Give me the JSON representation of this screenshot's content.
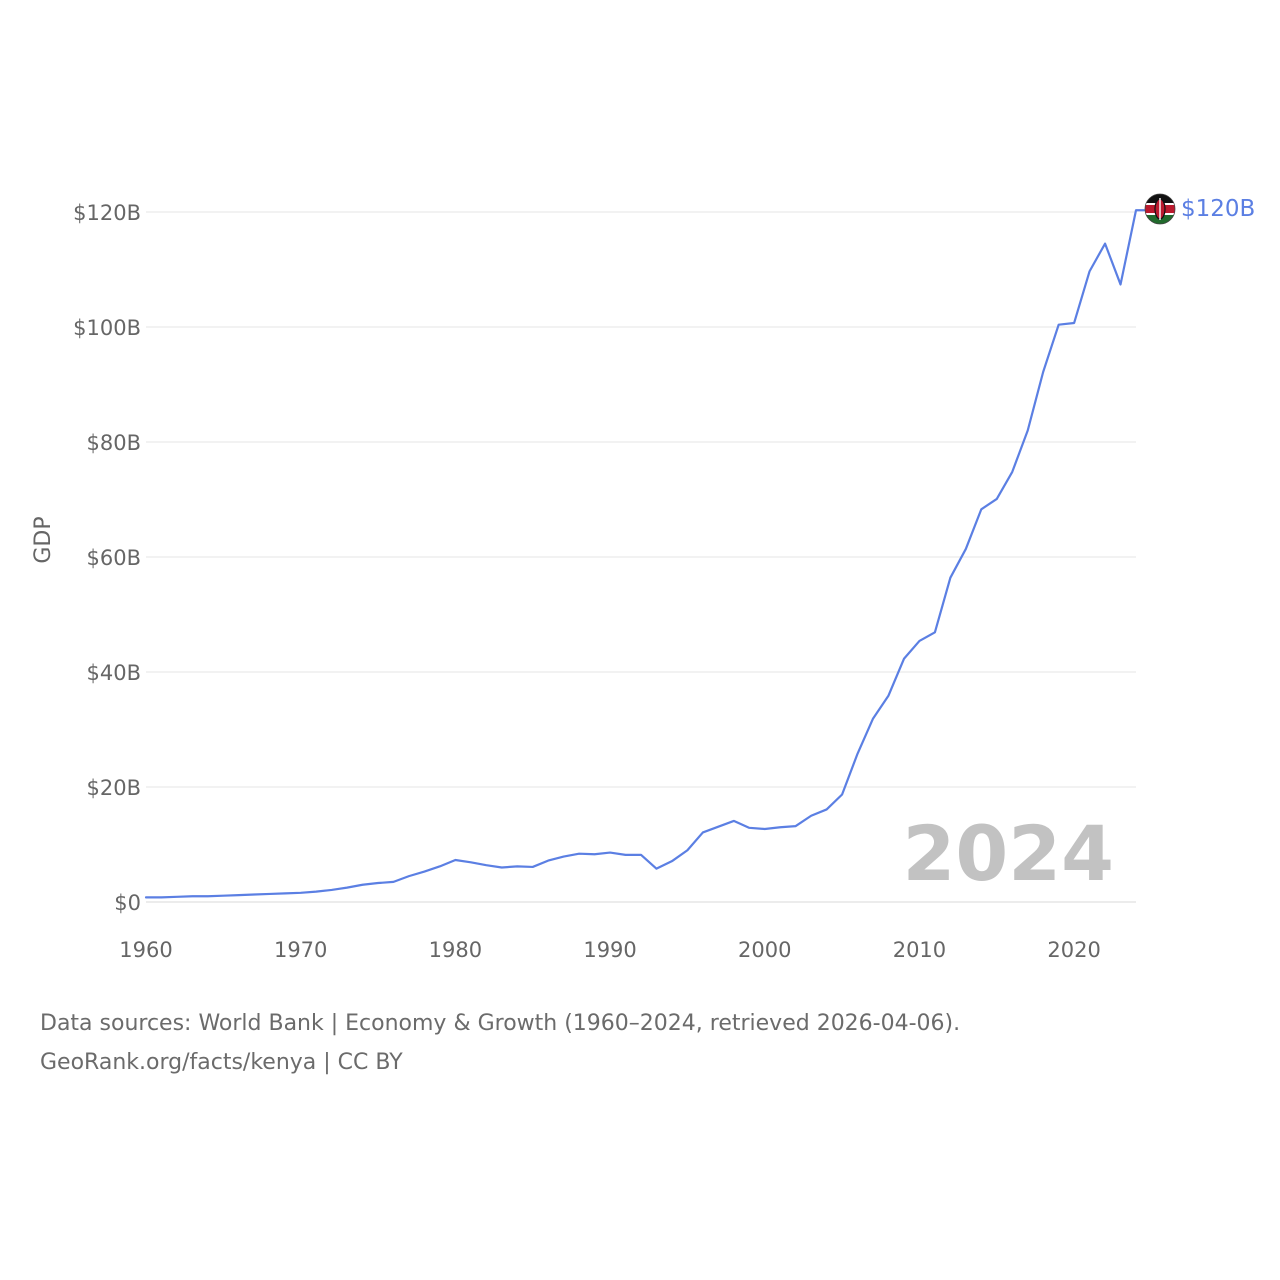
{
  "chart_data": {
    "type": "line",
    "title": "",
    "xlabel": "",
    "ylabel": "GDP",
    "xlim": [
      1960,
      2024
    ],
    "ylim": [
      0,
      120
    ],
    "y_unit": "billion USD",
    "x_ticks": [
      1960,
      1970,
      1980,
      1990,
      2000,
      2010,
      2020
    ],
    "x_tick_labels": [
      "1960",
      "1970",
      "1980",
      "1990",
      "2000",
      "2010",
      "2020"
    ],
    "y_ticks": [
      0,
      20,
      40,
      60,
      80,
      100,
      120
    ],
    "y_tick_labels": [
      "$0",
      "$20B",
      "$40B",
      "$60B",
      "$80B",
      "$100B",
      "$120B"
    ],
    "grid": true,
    "current_year_label": "2024",
    "end_value_label": "$120B",
    "series": [
      {
        "name": "Kenya",
        "color": "#5b7fe3",
        "x": [
          1960,
          1961,
          1962,
          1963,
          1964,
          1965,
          1966,
          1967,
          1968,
          1969,
          1970,
          1971,
          1972,
          1973,
          1974,
          1975,
          1976,
          1977,
          1978,
          1979,
          1980,
          1981,
          1982,
          1983,
          1984,
          1985,
          1986,
          1987,
          1988,
          1989,
          1990,
          1991,
          1992,
          1993,
          1994,
          1995,
          1996,
          1997,
          1998,
          1999,
          2000,
          2001,
          2002,
          2003,
          2004,
          2005,
          2006,
          2007,
          2008,
          2009,
          2010,
          2011,
          2012,
          2013,
          2014,
          2015,
          2016,
          2017,
          2018,
          2019,
          2020,
          2021,
          2022,
          2023,
          2024
        ],
        "values": [
          0.8,
          0.8,
          0.9,
          1.0,
          1.0,
          1.1,
          1.2,
          1.3,
          1.4,
          1.5,
          1.6,
          1.8,
          2.1,
          2.5,
          3.0,
          3.3,
          3.5,
          4.5,
          5.3,
          6.2,
          7.3,
          6.9,
          6.4,
          6.0,
          6.2,
          6.1,
          7.2,
          7.9,
          8.4,
          8.3,
          8.6,
          8.2,
          8.2,
          5.8,
          7.1,
          9.0,
          12.1,
          13.1,
          14.1,
          12.9,
          12.7,
          13.0,
          13.2,
          15.0,
          16.1,
          18.7,
          25.8,
          31.9,
          35.9,
          42.3,
          45.4,
          46.9,
          56.4,
          61.4,
          68.3,
          70.1,
          74.8,
          82.0,
          92.2,
          100.4,
          100.7,
          109.7,
          114.5,
          107.4,
          120.3
        ]
      }
    ]
  },
  "footer": {
    "line1": "Data sources: World Bank | Economy & Growth (1960–2024, retrieved 2026-04-06).",
    "line2": "GeoRank.org/facts/kenya | CC BY"
  }
}
